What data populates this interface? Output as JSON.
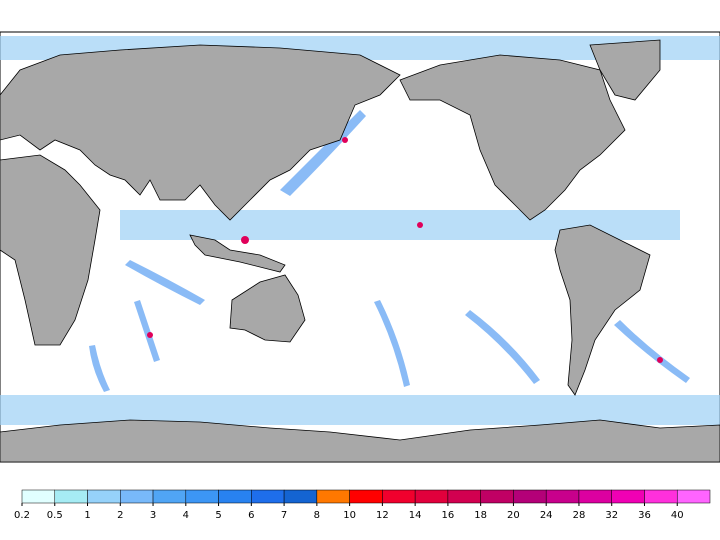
{
  "colorbar": {
    "ticks": [
      0.2,
      0.5,
      1,
      2,
      3,
      4,
      5,
      6,
      7,
      8,
      10,
      12,
      14,
      16,
      18,
      20,
      24,
      28,
      32,
      36,
      40
    ],
    "colors": [
      "#e1ffff",
      "#a6ecf4",
      "#96d2fa",
      "#78b9fa",
      "#50a5f5",
      "#3c96f5",
      "#2882f0",
      "#1e6eeb",
      "#1464d2",
      "#ff7800",
      "#ff0000",
      "#f0002d",
      "#e1003c",
      "#d20050",
      "#c00064",
      "#b40078",
      "#c8008c",
      "#dc00a0",
      "#f000b4",
      "#ff30dc",
      "#ff64ff"
    ]
  }
}
